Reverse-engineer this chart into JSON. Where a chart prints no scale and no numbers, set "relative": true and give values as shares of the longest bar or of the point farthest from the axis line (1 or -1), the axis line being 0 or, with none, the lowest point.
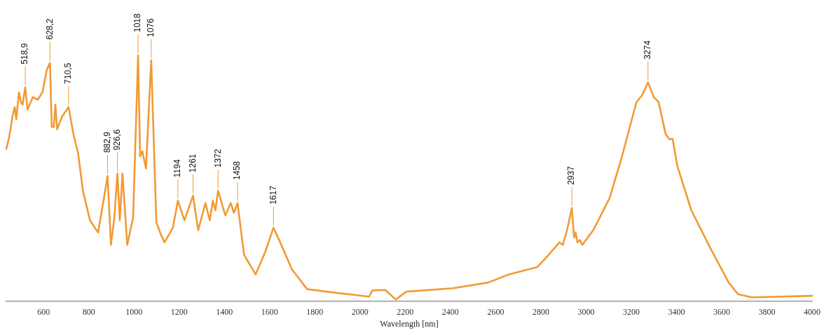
{
  "chart_data": {
    "type": "line",
    "relative": true,
    "xlabel": "Wavelength [nm]",
    "xlim": [
      435,
      4000
    ],
    "xticks": [
      600,
      800,
      1000,
      1200,
      1400,
      1600,
      1800,
      2000,
      2200,
      2400,
      2600,
      2800,
      3000,
      3200,
      3400,
      3600,
      3800,
      4000
    ],
    "grid": false,
    "legend": false,
    "marker": "none",
    "line_style": "solid",
    "series": [
      {
        "color": "#f29a35",
        "x": [
          435,
          448,
          464,
          472,
          479,
          491,
          500,
          507,
          518.9,
          529,
          552,
          574,
          595,
          614,
          628.2,
          636,
          645,
          652,
          660,
          681,
          710.5,
          732,
          753,
          774,
          805,
          841,
          867,
          882.9,
          898,
          913,
          926.6,
          937,
          949,
          970,
          996,
          1018,
          1027,
          1037,
          1053,
          1076,
          1099,
          1120,
          1135,
          1172,
          1194,
          1223,
          1261,
          1284,
          1316,
          1335,
          1349,
          1360,
          1372,
          1404,
          1428,
          1442,
          1458,
          1487,
          1538,
          1580,
          1617,
          1647,
          1699,
          1766,
          1895,
          2040,
          2055,
          2112,
          2158,
          2205,
          2412,
          2567,
          2660,
          2722,
          2784,
          2825,
          2882,
          2897,
          2916,
          2937,
          2947,
          2954,
          2962,
          2973,
          2983,
          3032,
          3104,
          3156,
          3223,
          3249,
          3274,
          3300,
          3321,
          3352,
          3368,
          3383,
          3404,
          3466,
          3548,
          3631,
          3672,
          3734,
          4000
        ],
        "values": [
          0.62,
          0.67,
          0.76,
          0.79,
          0.74,
          0.85,
          0.81,
          0.8,
          0.87,
          0.78,
          0.83,
          0.82,
          0.85,
          0.94,
          0.97,
          0.71,
          0.71,
          0.8,
          0.7,
          0.75,
          0.79,
          0.68,
          0.6,
          0.45,
          0.33,
          0.28,
          0.42,
          0.51,
          0.23,
          0.34,
          0.52,
          0.33,
          0.52,
          0.23,
          0.34,
          1.0,
          0.59,
          0.61,
          0.54,
          0.98,
          0.32,
          0.27,
          0.24,
          0.3,
          0.41,
          0.33,
          0.43,
          0.29,
          0.4,
          0.33,
          0.41,
          0.37,
          0.45,
          0.35,
          0.4,
          0.36,
          0.4,
          0.19,
          0.11,
          0.2,
          0.3,
          0.24,
          0.13,
          0.05,
          0.035,
          0.02,
          0.045,
          0.047,
          0.008,
          0.04,
          0.054,
          0.077,
          0.11,
          0.125,
          0.14,
          0.18,
          0.24,
          0.23,
          0.29,
          0.38,
          0.26,
          0.28,
          0.24,
          0.25,
          0.23,
          0.29,
          0.42,
          0.58,
          0.81,
          0.84,
          0.89,
          0.83,
          0.81,
          0.68,
          0.66,
          0.66,
          0.55,
          0.37,
          0.22,
          0.077,
          0.03,
          0.017,
          0.023
        ]
      }
    ],
    "annotations": [
      {
        "text": "518,9",
        "x": 518.9,
        "y": 0.87
      },
      {
        "text": "628,2",
        "x": 628.2,
        "y": 0.97
      },
      {
        "text": "710,5",
        "x": 710.5,
        "y": 0.79
      },
      {
        "text": "882,9",
        "x": 882.9,
        "y": 0.51
      },
      {
        "text": "926,6",
        "x": 926.6,
        "y": 0.52
      },
      {
        "text": "1018",
        "x": 1018,
        "y": 1.0
      },
      {
        "text": "1076",
        "x": 1076,
        "y": 0.98
      },
      {
        "text": "1194",
        "x": 1194,
        "y": 0.41
      },
      {
        "text": "1261",
        "x": 1261,
        "y": 0.43
      },
      {
        "text": "1372",
        "x": 1372,
        "y": 0.45
      },
      {
        "text": "1458",
        "x": 1458,
        "y": 0.4
      },
      {
        "text": "1617",
        "x": 1617,
        "y": 0.3
      },
      {
        "text": "2937",
        "x": 2937,
        "y": 0.38
      },
      {
        "text": "3274",
        "x": 3274,
        "y": 0.89
      }
    ]
  }
}
